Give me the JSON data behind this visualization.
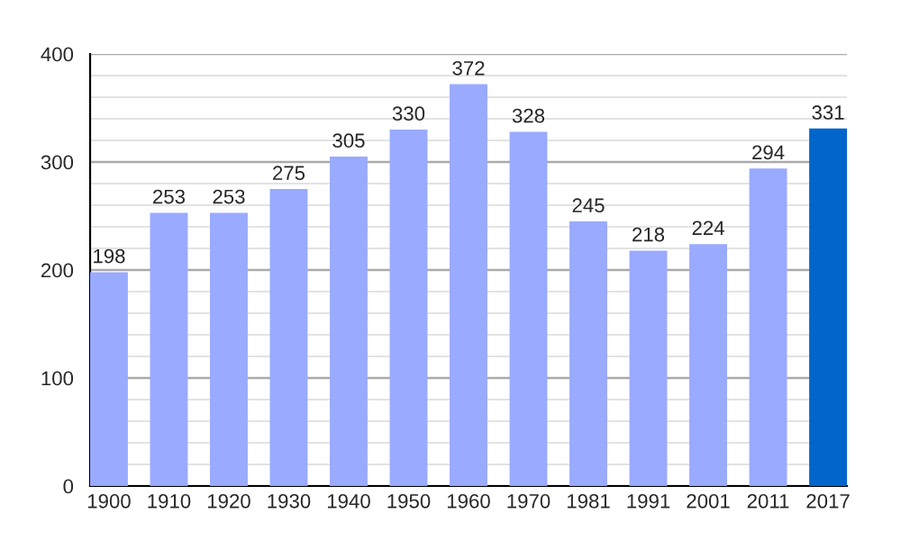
{
  "chart_data": {
    "type": "bar",
    "categories": [
      "1900",
      "1910",
      "1920",
      "1930",
      "1940",
      "1950",
      "1960",
      "1970",
      "1981",
      "1991",
      "2001",
      "2011",
      "2017"
    ],
    "values": [
      198,
      253,
      253,
      275,
      305,
      330,
      372,
      328,
      245,
      218,
      224,
      294,
      331
    ],
    "colors": [
      "#99aaff",
      "#99aaff",
      "#99aaff",
      "#99aaff",
      "#99aaff",
      "#99aaff",
      "#99aaff",
      "#99aaff",
      "#99aaff",
      "#99aaff",
      "#99aaff",
      "#99aaff",
      "#0066cc"
    ],
    "ylim": [
      0,
      400
    ],
    "yticks": [
      0,
      {
        "value": 20,
        "label": null
      },
      {
        "value": 40,
        "label": null
      },
      {
        "value": 60,
        "label": null
      },
      {
        "value": 80,
        "label": null
      },
      100,
      {
        "value": 120,
        "label": null
      },
      {
        "value": 140,
        "label": null
      },
      {
        "value": 160,
        "label": null
      },
      {
        "value": 180,
        "label": null
      },
      200,
      {
        "value": 220,
        "label": null
      },
      {
        "value": 240,
        "label": null
      },
      {
        "value": 260,
        "label": null
      },
      {
        "value": 280,
        "label": null
      },
      300,
      {
        "value": 320,
        "label": null
      },
      {
        "value": 340,
        "label": null
      },
      {
        "value": 360,
        "label": null
      },
      {
        "value": 380,
        "label": null
      },
      400
    ],
    "grid": "y",
    "data_labels": true
  }
}
